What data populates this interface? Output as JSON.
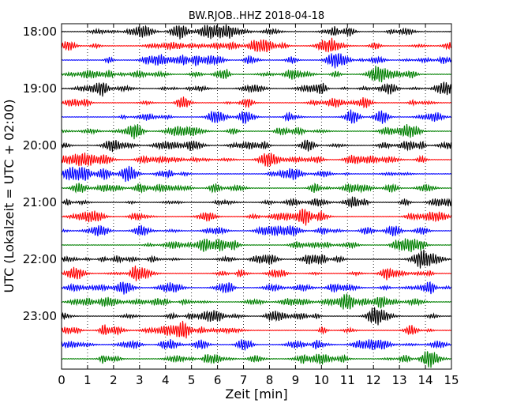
{
  "chart_data": {
    "type": "line",
    "title": "BW.RJOB..HHZ 2018-04-18",
    "xlabel": "Zeit  [min]",
    "ylabel": "UTC (Lokalzeit = UTC + 02:00)",
    "xlim": [
      0,
      15
    ],
    "x_ticks": [
      "0",
      "1",
      "2",
      "3",
      "4",
      "5",
      "6",
      "7",
      "8",
      "9",
      "10",
      "11",
      "12",
      "13",
      "14",
      "15"
    ],
    "y_ticks": [
      "18:00",
      "19:00",
      "20:00",
      "21:00",
      "22:00",
      "23:00"
    ],
    "grid": "vertical dotted",
    "trace_colors": [
      "#000000",
      "#ff0000",
      "#0000ff",
      "#008000"
    ],
    "trace_labels_per_hour": 4,
    "trace_count": 24
  }
}
